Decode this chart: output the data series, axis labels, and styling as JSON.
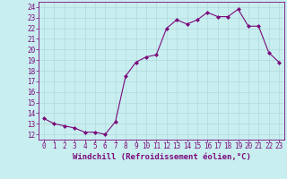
{
  "x": [
    0,
    1,
    2,
    3,
    4,
    5,
    6,
    7,
    8,
    9,
    10,
    11,
    12,
    13,
    14,
    15,
    16,
    17,
    18,
    19,
    20,
    21,
    22,
    23
  ],
  "y": [
    13.5,
    13.0,
    12.8,
    12.6,
    12.2,
    12.2,
    12.0,
    13.2,
    17.5,
    18.8,
    19.3,
    19.5,
    22.0,
    22.8,
    22.4,
    22.8,
    23.5,
    23.1,
    23.1,
    23.8,
    22.2,
    22.2,
    19.7,
    18.8
  ],
  "line_color": "#7b0a7b",
  "marker": "D",
  "marker_size": 2.0,
  "bg_color": "#c8eef0",
  "grid_color": "#b0d8da",
  "xlabel": "Windchill (Refroidissement éolien,°C)",
  "xlim": [
    -0.5,
    23.5
  ],
  "ylim": [
    11.5,
    24.5
  ],
  "xticks": [
    0,
    1,
    2,
    3,
    4,
    5,
    6,
    7,
    8,
    9,
    10,
    11,
    12,
    13,
    14,
    15,
    16,
    17,
    18,
    19,
    20,
    21,
    22,
    23
  ],
  "yticks": [
    12,
    13,
    14,
    15,
    16,
    17,
    18,
    19,
    20,
    21,
    22,
    23,
    24
  ],
  "xlabel_fontsize": 6.5,
  "tick_fontsize": 5.5,
  "line_width": 0.8
}
